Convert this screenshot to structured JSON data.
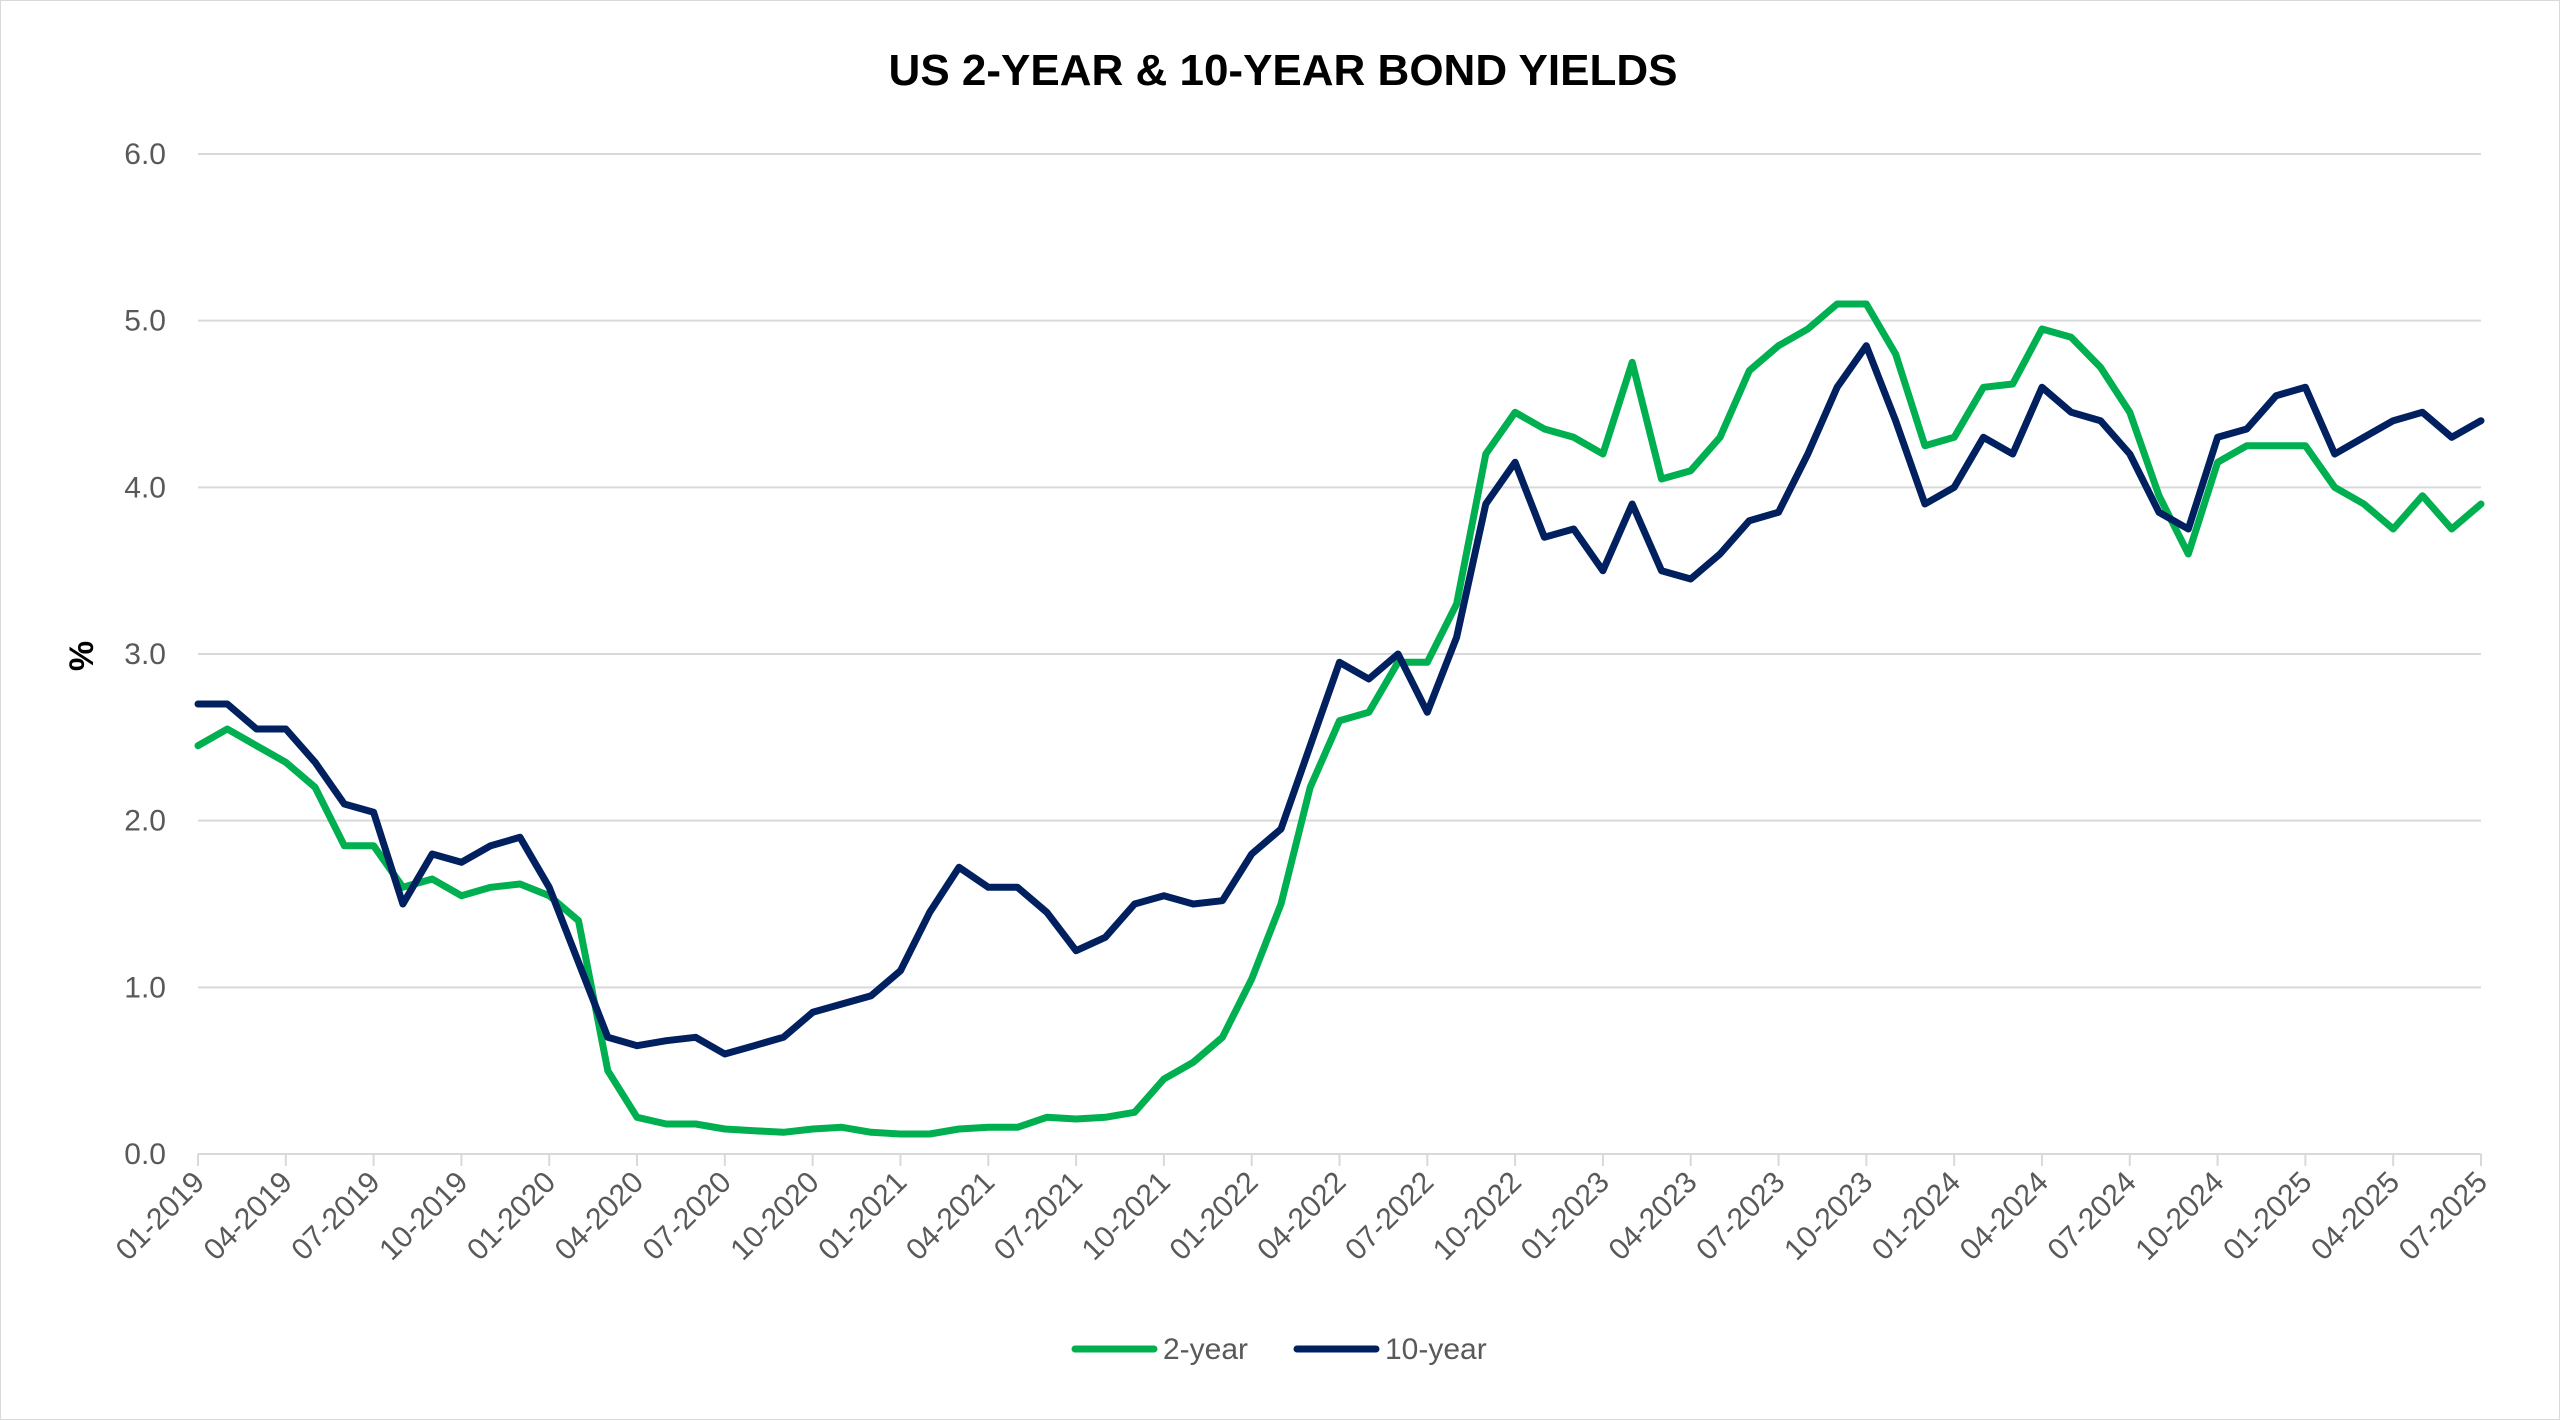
{
  "chart_data": {
    "type": "line",
    "title": "US 2-YEAR & 10-YEAR BOND YIELDS",
    "xlabel": "",
    "ylabel": "%",
    "ylim": [
      0,
      6
    ],
    "y_ticks": [
      "0.0",
      "1.0",
      "2.0",
      "3.0",
      "4.0",
      "5.0",
      "6.0"
    ],
    "x_ticks": [
      "01-2019",
      "04-2019",
      "07-2019",
      "10-2019",
      "01-2020",
      "04-2020",
      "07-2020",
      "10-2020",
      "01-2021",
      "04-2021",
      "07-2021",
      "10-2021",
      "01-2022",
      "04-2022",
      "07-2022",
      "10-2022",
      "01-2023",
      "04-2023",
      "07-2023",
      "10-2023",
      "01-2024",
      "04-2024",
      "07-2024",
      "10-2024",
      "01-2025",
      "04-2025",
      "07-2025"
    ],
    "grid": true,
    "legend_position": "bottom-center",
    "x": [
      "01-2019",
      "02-2019",
      "03-2019",
      "04-2019",
      "05-2019",
      "06-2019",
      "07-2019",
      "08-2019",
      "09-2019",
      "10-2019",
      "11-2019",
      "12-2019",
      "01-2020",
      "02-2020",
      "03-2020",
      "04-2020",
      "05-2020",
      "06-2020",
      "07-2020",
      "08-2020",
      "09-2020",
      "10-2020",
      "11-2020",
      "12-2020",
      "01-2021",
      "02-2021",
      "03-2021",
      "04-2021",
      "05-2021",
      "06-2021",
      "07-2021",
      "08-2021",
      "09-2021",
      "10-2021",
      "11-2021",
      "12-2021",
      "01-2022",
      "02-2022",
      "03-2022",
      "04-2022",
      "05-2022",
      "06-2022",
      "07-2022",
      "08-2022",
      "09-2022",
      "10-2022",
      "11-2022",
      "12-2022",
      "01-2023",
      "02-2023",
      "03-2023",
      "04-2023",
      "05-2023",
      "06-2023",
      "07-2023",
      "08-2023",
      "09-2023",
      "10-2023",
      "11-2023",
      "12-2023",
      "01-2024",
      "02-2024",
      "03-2024",
      "04-2024",
      "05-2024",
      "06-2024",
      "07-2024",
      "08-2024",
      "09-2024",
      "10-2024",
      "11-2024",
      "12-2024",
      "01-2025",
      "02-2025",
      "03-2025",
      "04-2025",
      "05-2025",
      "06-2025",
      "07-2025"
    ],
    "series": [
      {
        "name": "2-year",
        "color": "#00b050",
        "values": [
          2.45,
          2.55,
          2.45,
          2.35,
          2.2,
          1.85,
          1.85,
          1.6,
          1.65,
          1.55,
          1.6,
          1.62,
          1.55,
          1.4,
          0.5,
          0.22,
          0.18,
          0.18,
          0.15,
          0.14,
          0.13,
          0.15,
          0.16,
          0.13,
          0.12,
          0.12,
          0.15,
          0.16,
          0.16,
          0.22,
          0.21,
          0.22,
          0.25,
          0.45,
          0.55,
          0.7,
          1.05,
          1.5,
          2.2,
          2.6,
          2.65,
          2.95,
          2.95,
          3.3,
          4.2,
          4.45,
          4.35,
          4.3,
          4.2,
          4.75,
          4.05,
          4.1,
          4.3,
          4.7,
          4.85,
          4.95,
          5.1,
          5.1,
          4.8,
          4.25,
          4.3,
          4.6,
          4.62,
          4.95,
          4.9,
          4.72,
          4.45,
          3.95,
          3.6,
          4.15,
          4.25,
          4.25,
          4.25,
          4.0,
          3.9,
          3.75,
          3.95,
          3.75,
          3.9
        ]
      },
      {
        "name": "10-year",
        "color": "#002060",
        "values": [
          2.7,
          2.7,
          2.55,
          2.55,
          2.35,
          2.1,
          2.05,
          1.5,
          1.8,
          1.75,
          1.85,
          1.9,
          1.6,
          1.15,
          0.7,
          0.65,
          0.68,
          0.7,
          0.6,
          0.65,
          0.7,
          0.85,
          0.9,
          0.95,
          1.1,
          1.45,
          1.72,
          1.6,
          1.6,
          1.45,
          1.22,
          1.3,
          1.5,
          1.55,
          1.5,
          1.52,
          1.8,
          1.95,
          2.45,
          2.95,
          2.85,
          3.0,
          2.65,
          3.1,
          3.9,
          4.15,
          3.7,
          3.75,
          3.5,
          3.9,
          3.5,
          3.45,
          3.6,
          3.8,
          3.85,
          4.2,
          4.6,
          4.85,
          4.4,
          3.9,
          4.0,
          4.3,
          4.2,
          4.6,
          4.45,
          4.4,
          4.2,
          3.85,
          3.75,
          4.3,
          4.35,
          4.55,
          4.6,
          4.2,
          4.3,
          4.4,
          4.45,
          4.3,
          4.4
        ]
      }
    ]
  }
}
